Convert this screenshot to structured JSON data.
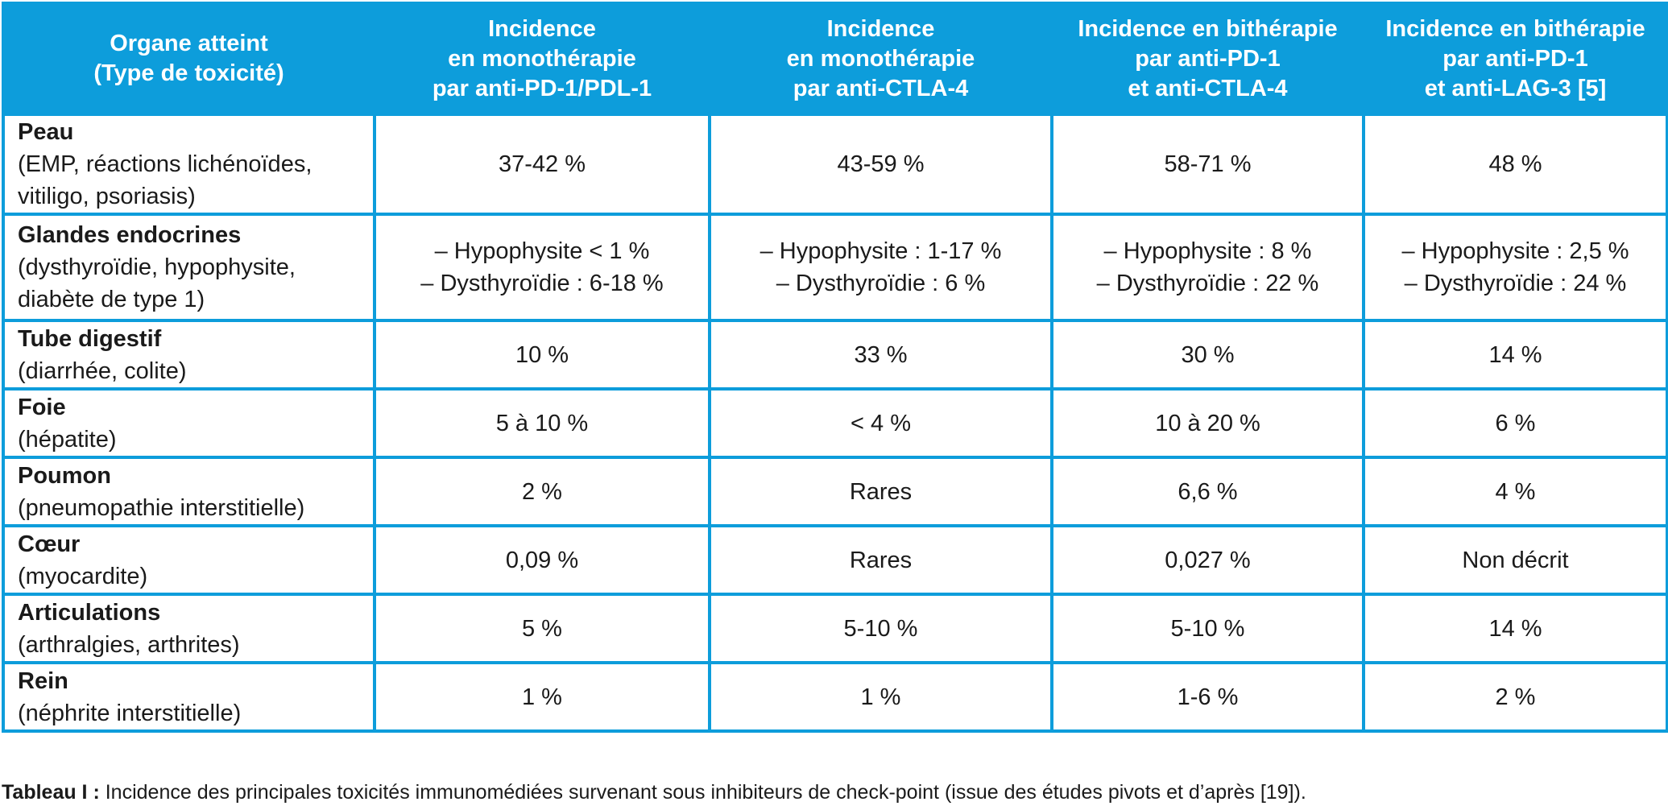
{
  "table": {
    "headers": [
      [
        "Organe atteint",
        "(Type de toxicité)"
      ],
      [
        "Incidence",
        "en monothérapie",
        "par anti-PD-1/PDL-1"
      ],
      [
        "Incidence",
        "en monothérapie",
        "par anti-CTLA-4"
      ],
      [
        "Incidence en bithérapie",
        "par anti-PD-1",
        "et anti-CTLA-4"
      ],
      [
        "Incidence en bithérapie",
        "par anti-PD-1",
        "et anti-LAG-3 [5]"
      ]
    ],
    "rows": [
      {
        "organ": "Peau",
        "detail": [
          "(EMP, réactions lichénoïdes,",
          "vitiligo, psoriasis)"
        ],
        "values": [
          [
            "37-42 %"
          ],
          [
            "43-59 %"
          ],
          [
            "58-71 %"
          ],
          [
            "48 %"
          ]
        ]
      },
      {
        "organ": "Glandes endocrines",
        "detail": [
          "(dysthyroïdie, hypophysite,",
          "diabète de type 1)"
        ],
        "values": [
          [
            "– Hypophysite < 1 %",
            "– Dysthyroïdie : 6-18 %"
          ],
          [
            "– Hypophysite : 1-17 %",
            "– Dysthyroïdie : 6 %"
          ],
          [
            "– Hypophysite : 8 %",
            "– Dysthyroïdie : 22 %"
          ],
          [
            "– Hypophysite : 2,5 %",
            "– Dysthyroïdie : 24 %"
          ]
        ]
      },
      {
        "organ": "Tube digestif",
        "detail": [
          "(diarrhée, colite)"
        ],
        "values": [
          [
            "10 %"
          ],
          [
            "33 %"
          ],
          [
            "30 %"
          ],
          [
            "14 %"
          ]
        ]
      },
      {
        "organ": "Foie",
        "detail": [
          "(hépatite)"
        ],
        "values": [
          [
            "5 à 10 %"
          ],
          [
            "< 4 %"
          ],
          [
            "10 à 20 %"
          ],
          [
            "6 %"
          ]
        ]
      },
      {
        "organ": "Poumon",
        "detail": [
          "(pneumopathie interstitielle)"
        ],
        "values": [
          [
            "2 %"
          ],
          [
            "Rares"
          ],
          [
            "6,6 %"
          ],
          [
            "4 %"
          ]
        ]
      },
      {
        "organ": "Cœur",
        "detail": [
          "(myocardite)"
        ],
        "values": [
          [
            "0,09 %"
          ],
          [
            "Rares"
          ],
          [
            "0,027 %"
          ],
          [
            "Non décrit"
          ]
        ]
      },
      {
        "organ": "Articulations",
        "detail": [
          "(arthralgies, arthrites)"
        ],
        "values": [
          [
            "5 %"
          ],
          [
            "5-10 %"
          ],
          [
            "5-10 %"
          ],
          [
            "14 %"
          ]
        ]
      },
      {
        "organ": "Rein",
        "detail": [
          "(néphrite interstitielle)"
        ],
        "values": [
          [
            "1 %"
          ],
          [
            "1 %"
          ],
          [
            "1-6 %"
          ],
          [
            "2 %"
          ]
        ]
      }
    ]
  },
  "caption": {
    "label": "Tableau I :",
    "text": " Incidence des principales toxicités immunomédiées survenant sous inhibiteurs de check-point (issue des études pivots et d’après [19])."
  },
  "colors": {
    "header_bg": "#0d9ddb",
    "header_text": "#ffffff",
    "border": "#0d9ddb"
  }
}
